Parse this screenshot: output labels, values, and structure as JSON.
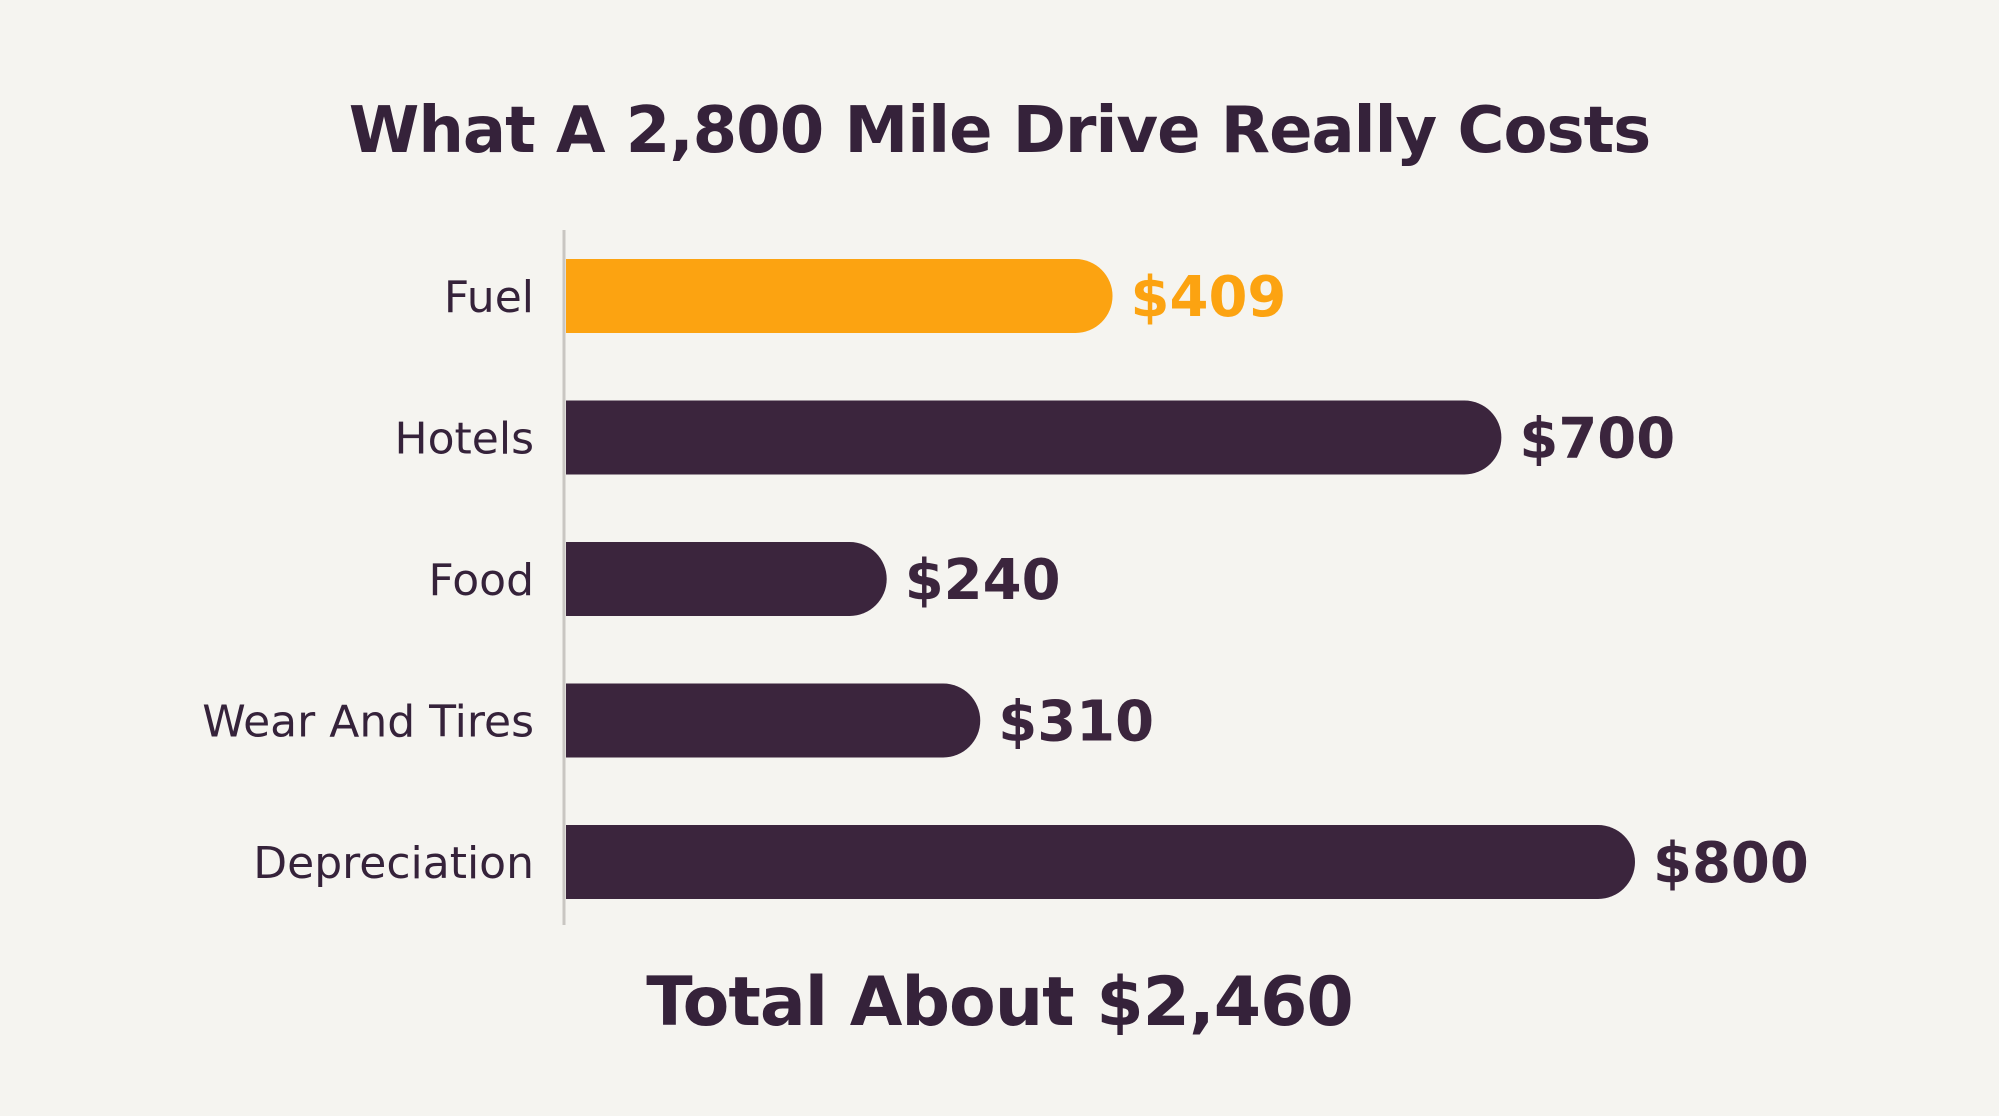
{
  "chart_data": {
    "type": "bar",
    "orientation": "horizontal",
    "title": "What A 2,800 Mile Drive Really Costs",
    "categories": [
      "Fuel",
      "Hotels",
      "Food",
      "Wear And Tires",
      "Depreciation"
    ],
    "values": [
      409,
      700,
      240,
      310,
      800
    ],
    "value_labels": [
      "$409",
      "$700",
      "$240",
      "$310",
      "$800"
    ],
    "highlight_index": 0,
    "xlim": [
      0,
      800
    ],
    "grid": false,
    "legend": "none",
    "annotation": "Total About $2,460"
  },
  "colors": {
    "background": "#f5f4f0",
    "bar": "#3b253d",
    "highlight": "#fca311",
    "text": "#35223a",
    "axis": "#c9c6c2"
  }
}
